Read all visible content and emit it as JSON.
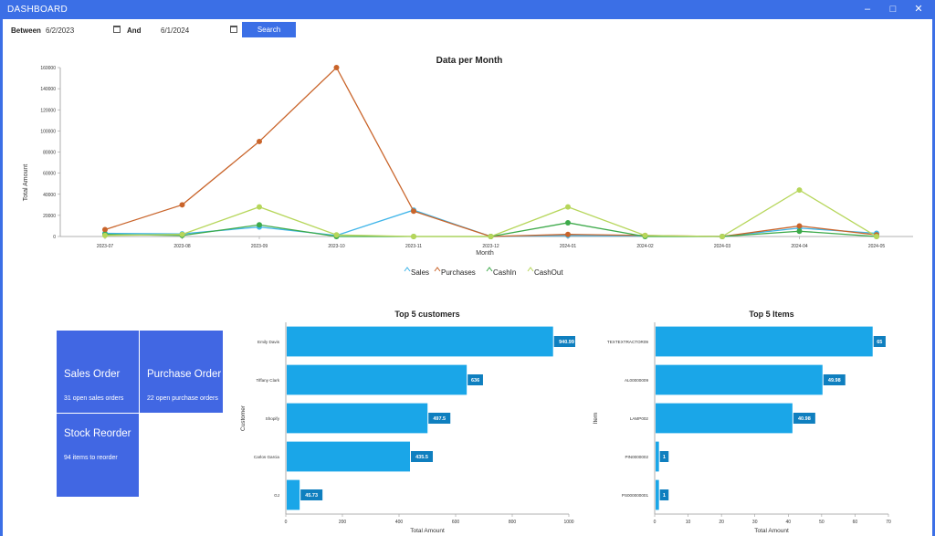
{
  "window": {
    "title": "DASHBOARD"
  },
  "filter": {
    "between_label": "Between",
    "start_date": "6/2/2023",
    "and_label": "And",
    "end_date": "6/1/2024",
    "search_label": "Search"
  },
  "colors": {
    "accent": "#3b6fe6",
    "tile": "#4167e3",
    "bar": "#1aa6e8",
    "sales": "#3fb5e9",
    "purchases": "#c9642a",
    "cashin": "#3daa4a",
    "cashout": "#b6d65a"
  },
  "icons": [
    "calendar-icon",
    "minimize-icon",
    "maximize-icon",
    "close-icon"
  ],
  "chart_data": [
    {
      "type": "line",
      "title": "Data per Month",
      "xlabel": "Month",
      "ylabel": "Total Amount",
      "categories": [
        "2023-07",
        "2023-08",
        "2023-09",
        "2023-10",
        "2023-11",
        "2023-12",
        "2024-01",
        "2024-02",
        "2024-03",
        "2024-04",
        "2024-05"
      ],
      "yticks": [
        "0",
        "20000",
        "40000",
        "60000",
        "80000",
        "100000",
        "120000",
        "140000",
        "160000"
      ],
      "ylim": [
        0,
        160000
      ],
      "series": [
        {
          "name": "Sales",
          "color": "#3fb5e9",
          "values": [
            3000,
            2500,
            9000,
            1000,
            25000,
            0,
            1000,
            500,
            0,
            8000,
            3000
          ]
        },
        {
          "name": "Purchases",
          "color": "#c9642a",
          "values": [
            6500,
            30000,
            90000,
            160000,
            24000,
            0,
            2000,
            1000,
            0,
            10000,
            1500
          ]
        },
        {
          "name": "CashIn",
          "color": "#3daa4a",
          "values": [
            2000,
            1000,
            11000,
            0,
            0,
            0,
            13000,
            0,
            0,
            5000,
            0
          ]
        },
        {
          "name": "CashOut",
          "color": "#b6d65a",
          "values": [
            1000,
            2000,
            28000,
            1500,
            0,
            0,
            28000,
            1000,
            0,
            44000,
            0
          ]
        }
      ],
      "legend": "bottom"
    },
    {
      "type": "bar",
      "orientation": "horizontal",
      "title": "Top 5 customers",
      "xlabel": "Total Amount",
      "ylabel": "Customer",
      "categories": [
        "Emily Davis",
        "Tiffany Clark",
        "Shopify",
        "Carlos Garcia",
        "GJ"
      ],
      "values": [
        940.99,
        636,
        497.5,
        435.5,
        45.73
      ],
      "labels": [
        "940.99",
        "636",
        "497.5",
        "435.5",
        "45.73"
      ],
      "xticks": [
        "0",
        "200",
        "400",
        "600",
        "800",
        "1000"
      ],
      "xlim": [
        0,
        1000
      ]
    },
    {
      "type": "bar",
      "orientation": "horizontal",
      "title": "Top 5 Items",
      "xlabel": "Total Amount",
      "ylabel": "Item",
      "categories": [
        "TEXTEXTRACTOR09",
        "AL00000009",
        "LAMP002",
        "PIN0000002",
        "PS000000001"
      ],
      "values": [
        65,
        49.98,
        40.98,
        1,
        1
      ],
      "labels": [
        "65",
        "49.98",
        "40.98",
        "1",
        "1"
      ],
      "xticks": [
        "0",
        "10",
        "20",
        "30",
        "40",
        "50",
        "60",
        "70"
      ],
      "xlim": [
        0,
        70
      ]
    }
  ],
  "tiles": [
    {
      "name": "Sales Order",
      "subtitle": "31 open sales orders"
    },
    {
      "name": "Purchase Order",
      "subtitle": "22 open purchase orders"
    },
    {
      "name": "Stock Reorder",
      "subtitle": "94 items to reorder"
    }
  ]
}
